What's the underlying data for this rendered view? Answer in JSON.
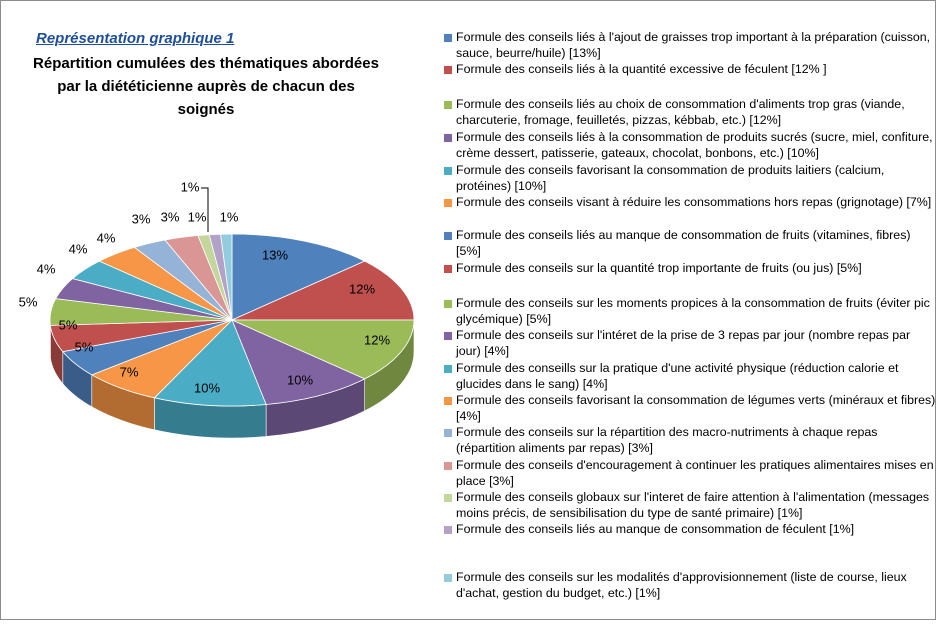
{
  "chart_data": {
    "type": "pie",
    "subtitle": "Représentation graphique 1",
    "title": "Répartition cumulées des thématiques abordées par la diététicienne auprès de chacun des soignés",
    "categories": [
      "Formule des conseils liés à l'ajout de graisses trop important à la préparation (cuisson, sauce, beurre/huile) [13%]",
      "Formule des conseils liés à la quantité excessive de féculent [12% ]",
      "Formule des conseils liés au choix de consommation d'aliments trop gras (viande, charcuterie, fromage, feuilletés, pizzas, kébbab, etc.) [12%]",
      "Formule des conseils liés à la consommation de produits sucrés (sucre, miel, confiture, crème dessert, patisserie, gateaux, chocolat, bonbons, etc.) [10%]",
      "Formule des conseils favorisant la consommation de produits laitiers (calcium, protéines) [10%]",
      "Formule des conseils visant à réduire les consommations hors repas (grignotage) [7%]",
      "Formule des conseils liés au manque de consommation de fruits (vitamines, fibres) [5%]",
      "Formule des conseils sur la quantité trop importante de fruits (ou jus) [5%]",
      "Formule des conseils sur les moments propices à la consommation de fruits (éviter pic glycémique) [5%]",
      "Formule des conseils sur l'intéret de la prise de 3 repas par jour (nombre repas par jour) [4%]",
      "Formule des conseills sur la pratique d'une activité physique (réduction calorie et glucides dans le sang) [4%]",
      "Formule des conseils favorisant la consommation de légumes verts (minéraux et fibres) [4%]",
      "Formule des conseils sur la répartition des macro-nutriments à chaque repas (répartition aliments par repas) [3%]",
      "Formule des conseils d'encouragement à continuer les pratiques alimentaires mises en place [3%]",
      "Formule des conseils globaux sur l'interet de faire attention à l'alimentation (messages moins précis, de sensibilisation du type de santé primaire) [1%]",
      "Formule des conseils liés au manque de consommation de féculent [1%]",
      "Formule des conseils sur les modalités d'approvisionnement (liste de course, lieux d'achat, gestion du budget, etc.) [1%]"
    ],
    "values": [
      13,
      12,
      12,
      10,
      10,
      7,
      5,
      5,
      5,
      4,
      4,
      4,
      3,
      3,
      1,
      1,
      1
    ],
    "value_labels": [
      "13%",
      "12%",
      "12%",
      "10%",
      "10%",
      "7%",
      "5%",
      "5%",
      "5%",
      "4%",
      "4%",
      "4%",
      "3%",
      "3%",
      "1%",
      "1%",
      "1%"
    ],
    "colors": [
      "#4f81bd",
      "#c0504d",
      "#9bbb59",
      "#8064a2",
      "#4bacc6",
      "#f79646",
      "#4f81bd",
      "#c0504d",
      "#9bbb59",
      "#8064a2",
      "#4bacc6",
      "#f79646",
      "#95b3d7",
      "#d99694",
      "#c3d69b",
      "#b3a2c7",
      "#93cddd"
    ]
  }
}
